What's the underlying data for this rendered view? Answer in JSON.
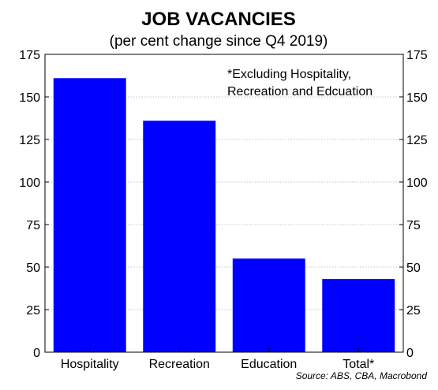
{
  "chart_data": {
    "type": "bar",
    "title": "JOB VACANCIES",
    "subtitle": "(per cent change since Q4 2019)",
    "categories": [
      "Hospitality",
      "Recreation",
      "Education",
      "Total*"
    ],
    "values": [
      161,
      136,
      55,
      43
    ],
    "ylim": [
      0,
      175
    ],
    "yticks": [
      0,
      25,
      50,
      75,
      100,
      125,
      150,
      175
    ],
    "ytick_labels": [
      "0",
      "25",
      "50",
      "75",
      "100",
      "125",
      "150",
      "175"
    ],
    "grid": true,
    "axes_both_sides": true,
    "bar_color": "#0000ff",
    "annotation_lines": [
      "*Excluding Hospitality,",
      "Recreation and Edcuation"
    ],
    "source": "Source: ABS, CBA, Macrobond"
  }
}
